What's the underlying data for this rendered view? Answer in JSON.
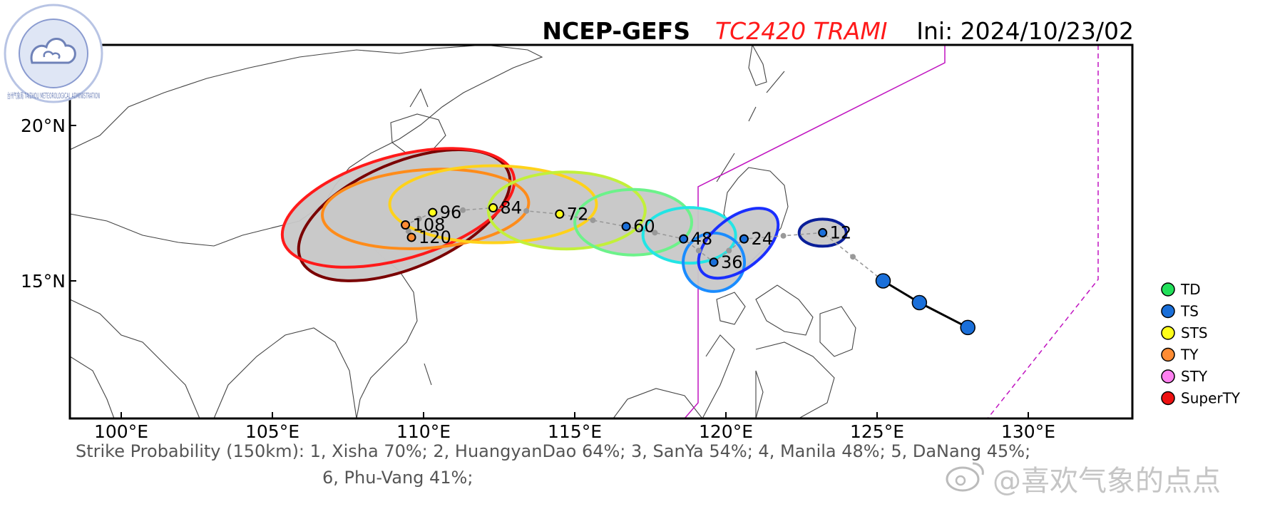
{
  "header": {
    "model": "NCEP-GEFS",
    "storm": "TC2420 TRAMI",
    "init": "Ini: 2024/10/23/02"
  },
  "axes": {
    "lon_ticks": [
      "100°E",
      "105°E",
      "110°E",
      "115°E",
      "120°E",
      "125°E",
      "130°E"
    ],
    "lat_ticks": [
      "20°N",
      "15°N"
    ]
  },
  "observed_track": [
    {
      "lon": 128.0,
      "lat": 13.5,
      "category": "TS"
    },
    {
      "lon": 126.4,
      "lat": 14.3,
      "category": "TS"
    },
    {
      "lon": 125.2,
      "lat": 15.0,
      "category": "TS"
    }
  ],
  "forecast_points": [
    {
      "hour": "12",
      "lon": 123.2,
      "lat": 16.55,
      "category": "TS",
      "ellipse": "#0a1f99"
    },
    {
      "hour": "24",
      "lon": 120.6,
      "lat": 16.35,
      "category": "TS",
      "ellipse": "#1a2fff"
    },
    {
      "hour": "36",
      "lon": 119.6,
      "lat": 15.6,
      "category": "TS",
      "ellipse": "#1a8cff"
    },
    {
      "hour": "48",
      "lon": 118.6,
      "lat": 16.35,
      "category": "TS",
      "ellipse": "#22e5e5"
    },
    {
      "hour": "60",
      "lon": 116.7,
      "lat": 16.75,
      "category": "TS",
      "ellipse": "#6cf28a"
    },
    {
      "hour": "72",
      "lon": 114.5,
      "lat": 17.15,
      "category": "STS",
      "ellipse": "#c2f03a"
    },
    {
      "hour": "84",
      "lon": 112.3,
      "lat": 17.35,
      "category": "STS",
      "ellipse": "#ffd21a"
    },
    {
      "hour": "96",
      "lon": 110.3,
      "lat": 17.2,
      "category": "STS",
      "ellipse": "#ff8c1a"
    },
    {
      "hour": "108",
      "lon": 109.4,
      "lat": 16.8,
      "category": "TY",
      "ellipse": "#ff1a1a"
    },
    {
      "hour": "120",
      "lon": 109.6,
      "lat": 16.4,
      "category": "TY",
      "ellipse": "#7a0000"
    }
  ],
  "legend": [
    {
      "label": "TD",
      "color": "#22e05a"
    },
    {
      "label": "TS",
      "color": "#1a6fd9"
    },
    {
      "label": "STS",
      "color": "#ffff1a"
    },
    {
      "label": "TY",
      "color": "#ff8c33"
    },
    {
      "label": "STY",
      "color": "#ff80f0"
    },
    {
      "label": "SuperTY",
      "color": "#ee1111"
    }
  ],
  "strike_probability": {
    "line1": "Strike Probability (150km): 1, Xisha 70%;  2, HuangyanDao 64%;  3, SanYa 54%;  4, Manila 48%;  5, DaNang 45%;",
    "line2": "6, Phu-Vang 41%;"
  },
  "logo_text": "台州气象局 TAIZHOU METEOROLOGICAL ADMINISTRATION",
  "watermark": "@喜欢气象的点点",
  "icon_names": [
    "weibo-icon",
    "cloud-seal-icon"
  ]
}
